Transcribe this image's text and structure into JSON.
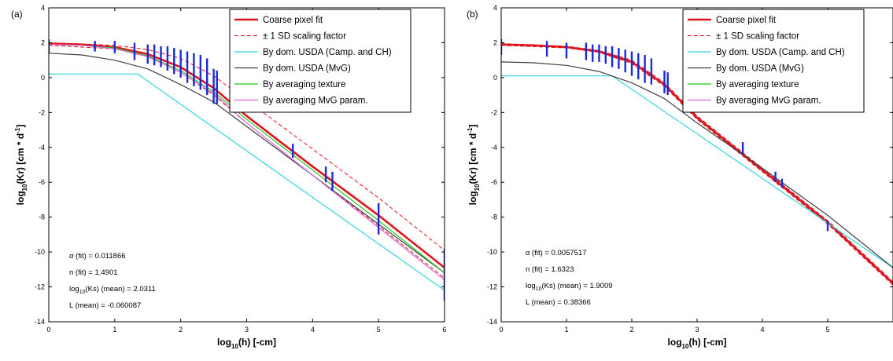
{
  "chart_data": [
    {
      "type": "line",
      "panel_label": "(a)",
      "xlabel_main": "log",
      "xlabel_sub": "10",
      "xlabel_rest": "(h) [-cm]",
      "ylabel_main": "log",
      "ylabel_sub": "10",
      "ylabel_rest": "(Kr) [cm * d",
      "ylabel_sup": "-1",
      "ylabel_end": "]",
      "xlim": [
        0,
        6
      ],
      "ylim": [
        -14,
        4
      ],
      "xticks": [
        0,
        1,
        2,
        3,
        4,
        5,
        6
      ],
      "yticks": [
        4,
        2,
        0,
        -2,
        -4,
        -6,
        -8,
        -10,
        -12,
        -14
      ],
      "legend": [
        {
          "label": "Coarse pixel fit",
          "color": "#e0141c",
          "dash": "",
          "width": 2.6
        },
        {
          "label": "± 1 SD scaling factor",
          "color": "#e0141c",
          "dash": "5,3",
          "width": 1
        },
        {
          "label": "By dom. USDA (Camp. and CH)",
          "color": "#33d6e0",
          "dash": "",
          "width": 1.2
        },
        {
          "label": "By dom. USDA (MvG)",
          "color": "#404040",
          "dash": "",
          "width": 1.2
        },
        {
          "label": "By averaging texture",
          "color": "#22c522",
          "dash": "",
          "width": 1.2
        },
        {
          "label": "By averaging MvG param.",
          "color": "#e060e0",
          "dash": "",
          "width": 1.2
        }
      ],
      "annotations": [
        {
          "sym": "α",
          "rest": " (fit) = 0.011866"
        },
        {
          "pre": "n (fit) = 1.4901"
        },
        {
          "pre": "log",
          "sub": "10",
          "rest": "(Ks) (mean) = 2.0311"
        },
        {
          "pre": "L (mean) = -0.060087"
        }
      ],
      "series": [
        {
          "name": "Coarse pixel fit",
          "color": "#e0141c",
          "width": 2.6,
          "dash": "",
          "x": [
            0,
            0.5,
            1.0,
            1.5,
            2.0,
            2.5,
            3.0,
            4.0,
            5.0,
            6.0
          ],
          "y": [
            1.95,
            1.9,
            1.75,
            1.35,
            0.6,
            -0.6,
            -2.2,
            -5.1,
            -7.9,
            -10.9
          ]
        },
        {
          "name": "+1 SD",
          "color": "#e0141c",
          "width": 1,
          "dash": "5,3",
          "x": [
            0,
            1.0,
            1.5,
            2.0,
            2.5,
            3.0,
            4.0,
            5.0,
            6.0
          ],
          "y": [
            2.0,
            1.85,
            1.6,
            1.1,
            0.1,
            -1.3,
            -4.1,
            -6.9,
            -9.9
          ]
        },
        {
          "name": "-1 SD",
          "color": "#e0141c",
          "width": 1,
          "dash": "5,3",
          "x": [
            0,
            1.0,
            1.5,
            2.0,
            2.5,
            3.0,
            4.0,
            5.0,
            6.0
          ],
          "y": [
            1.85,
            1.65,
            1.2,
            0.3,
            -1.0,
            -2.6,
            -5.6,
            -8.5,
            -11.5
          ]
        },
        {
          "name": "By dom. USDA (Camp. and CH)",
          "color": "#33d6e0",
          "width": 1.2,
          "dash": "",
          "x": [
            0,
            1.35,
            6.0
          ],
          "y": [
            0.2,
            0.2,
            -12.2
          ]
        },
        {
          "name": "By dom. USDA (MvG)",
          "color": "#404040",
          "width": 1.2,
          "dash": "",
          "x": [
            0,
            0.5,
            1.0,
            1.5,
            2.0,
            2.5,
            3.0,
            4.0,
            5.0,
            6.0
          ],
          "y": [
            1.4,
            1.3,
            1.0,
            0.5,
            -0.4,
            -1.4,
            -2.8,
            -5.6,
            -8.4,
            -11.2
          ]
        },
        {
          "name": "By averaging texture",
          "color": "#22c522",
          "width": 1.2,
          "dash": "",
          "x": [
            0,
            0.5,
            1.0,
            1.5,
            2.0,
            2.5,
            3.0,
            4.0,
            5.0,
            6.0
          ],
          "y": [
            1.9,
            1.85,
            1.7,
            1.25,
            0.4,
            -0.8,
            -2.4,
            -5.3,
            -8.2,
            -11.2
          ]
        },
        {
          "name": "By averaging MvG param.",
          "color": "#e060e0",
          "width": 1.2,
          "dash": "",
          "x": [
            0,
            0.5,
            1.0,
            1.5,
            2.0,
            2.5,
            3.0,
            4.0,
            5.0,
            6.0
          ],
          "y": [
            1.9,
            1.85,
            1.65,
            1.2,
            0.3,
            -0.9,
            -2.6,
            -5.6,
            -8.6,
            -11.6
          ]
        }
      ],
      "error_bars": [
        {
          "x": 0.0,
          "lo": 1.4,
          "hi": 2.2
        },
        {
          "x": 0.7,
          "lo": 1.5,
          "hi": 2.1
        },
        {
          "x": 1.0,
          "lo": 1.4,
          "hi": 2.1
        },
        {
          "x": 1.3,
          "lo": 1.0,
          "hi": 2.0
        },
        {
          "x": 1.5,
          "lo": 0.8,
          "hi": 1.9
        },
        {
          "x": 1.6,
          "lo": 0.7,
          "hi": 1.9
        },
        {
          "x": 1.7,
          "lo": 0.6,
          "hi": 1.8
        },
        {
          "x": 1.8,
          "lo": 0.4,
          "hi": 1.8
        },
        {
          "x": 1.9,
          "lo": 0.2,
          "hi": 1.7
        },
        {
          "x": 2.0,
          "lo": 0.0,
          "hi": 1.6
        },
        {
          "x": 2.1,
          "lo": -0.3,
          "hi": 1.5
        },
        {
          "x": 2.2,
          "lo": -0.5,
          "hi": 1.4
        },
        {
          "x": 2.3,
          "lo": -0.7,
          "hi": 1.3
        },
        {
          "x": 2.4,
          "lo": -1.0,
          "hi": 1.1
        },
        {
          "x": 2.5,
          "lo": -1.5,
          "hi": 0.5
        },
        {
          "x": 2.55,
          "lo": -1.5,
          "hi": 0.4
        },
        {
          "x": 3.7,
          "lo": -4.6,
          "hi": -3.8
        },
        {
          "x": 4.2,
          "lo": -6.0,
          "hi": -5.1
        },
        {
          "x": 4.3,
          "lo": -6.5,
          "hi": -5.4
        },
        {
          "x": 5.0,
          "lo": -9.0,
          "hi": -7.2
        },
        {
          "x": 6.0,
          "lo": -12.8,
          "hi": -9.8
        }
      ]
    },
    {
      "type": "line",
      "panel_label": "(b)",
      "xlabel_main": "log",
      "xlabel_sub": "10",
      "xlabel_rest": "(h) [-cm]",
      "ylabel_main": "log",
      "ylabel_sub": "10",
      "ylabel_rest": "(Kr) [cm * d",
      "ylabel_sup": "-1",
      "ylabel_end": "]",
      "xlim": [
        0,
        6
      ],
      "ylim": [
        -14,
        4
      ],
      "xticks": [
        0,
        1,
        2,
        3,
        4,
        5
      ],
      "yticks": [
        4,
        2,
        0,
        -2,
        -4,
        -6,
        -8,
        -10,
        -12,
        -14
      ],
      "legend": [
        {
          "label": "Coarse pixel fit",
          "color": "#e0141c",
          "dash": "",
          "width": 2.6
        },
        {
          "label": "± 1 SD scaling factor",
          "color": "#e0141c",
          "dash": "5,3",
          "width": 1
        },
        {
          "label": "By dom. USDA (Camp. and CH)",
          "color": "#33d6e0",
          "dash": "",
          "width": 1.2
        },
        {
          "label": "By dom. USDA (MvG)",
          "color": "#404040",
          "dash": "",
          "width": 1.2
        },
        {
          "label": "By averaging texture",
          "color": "#22c522",
          "dash": "",
          "width": 1.2
        },
        {
          "label": "By averaging MvG param.",
          "color": "#e060e0",
          "dash": "",
          "width": 1.2
        }
      ],
      "annotations": [
        {
          "sym": "α",
          "rest": " (fit) = 0.0057517"
        },
        {
          "pre": "n (fit) = 1.6323"
        },
        {
          "pre": "log",
          "sub": "10",
          "rest": "(Ks) (mean) = 1.9009"
        },
        {
          "pre": "L (mean) = 0.38366"
        }
      ],
      "series": [
        {
          "name": "Coarse pixel fit",
          "color": "#e0141c",
          "width": 2.6,
          "dash": "",
          "x": [
            0,
            0.5,
            1.0,
            1.5,
            2.0,
            2.5,
            3.0,
            4.0,
            5.0,
            6.0
          ],
          "y": [
            1.9,
            1.85,
            1.75,
            1.5,
            0.9,
            -0.4,
            -2.3,
            -5.3,
            -8.3,
            -11.8
          ]
        },
        {
          "name": "+1 SD",
          "color": "#e0141c",
          "width": 1,
          "dash": "5,3",
          "x": [
            0,
            1.0,
            1.5,
            2.0,
            2.5,
            3.0,
            4.0,
            5.0,
            6.0
          ],
          "y": [
            1.95,
            1.8,
            1.55,
            1.0,
            -0.3,
            -2.2,
            -5.2,
            -8.2,
            -11.7
          ]
        },
        {
          "name": "-1 SD",
          "color": "#e0141c",
          "width": 1,
          "dash": "5,3",
          "x": [
            0,
            1.0,
            1.5,
            2.0,
            2.5,
            3.0,
            4.0,
            5.0,
            6.0
          ],
          "y": [
            1.85,
            1.7,
            1.45,
            0.8,
            -0.5,
            -2.4,
            -5.4,
            -8.4,
            -11.9
          ]
        },
        {
          "name": "By dom. USDA (Camp. and CH)",
          "color": "#33d6e0",
          "width": 1.2,
          "dash": "",
          "x": [
            0,
            1.7,
            6.0
          ],
          "y": [
            0.1,
            0.1,
            -10.9
          ]
        },
        {
          "name": "By dom. USDA (MvG)",
          "color": "#404040",
          "width": 1.2,
          "dash": "",
          "x": [
            0,
            0.5,
            1.0,
            1.5,
            2.0,
            2.5,
            3.0,
            4.0,
            5.0,
            6.0
          ],
          "y": [
            0.9,
            0.85,
            0.7,
            0.35,
            -0.3,
            -1.2,
            -2.6,
            -5.2,
            -7.9,
            -10.9
          ]
        }
      ],
      "error_bars": [
        {
          "x": 0.0,
          "lo": 1.3,
          "hi": 2.2
        },
        {
          "x": 0.7,
          "lo": 1.2,
          "hi": 2.1
        },
        {
          "x": 1.0,
          "lo": 1.1,
          "hi": 2.0
        },
        {
          "x": 1.3,
          "lo": 1.0,
          "hi": 2.0
        },
        {
          "x": 1.4,
          "lo": 0.9,
          "hi": 1.9
        },
        {
          "x": 1.5,
          "lo": 0.9,
          "hi": 1.9
        },
        {
          "x": 1.6,
          "lo": 0.8,
          "hi": 1.8
        },
        {
          "x": 1.7,
          "lo": 0.6,
          "hi": 1.8
        },
        {
          "x": 1.8,
          "lo": 0.5,
          "hi": 1.7
        },
        {
          "x": 1.9,
          "lo": 0.3,
          "hi": 1.6
        },
        {
          "x": 2.0,
          "lo": 0.1,
          "hi": 1.5
        },
        {
          "x": 2.1,
          "lo": -0.1,
          "hi": 1.4
        },
        {
          "x": 2.2,
          "lo": -0.3,
          "hi": 1.3
        },
        {
          "x": 2.3,
          "lo": -0.4,
          "hi": 1.1
        },
        {
          "x": 2.5,
          "lo": -0.9,
          "hi": 0.4
        },
        {
          "x": 2.55,
          "lo": -1.0,
          "hi": 0.3
        },
        {
          "x": 3.7,
          "lo": -4.4,
          "hi": -3.7
        },
        {
          "x": 4.2,
          "lo": -6.0,
          "hi": -5.4
        },
        {
          "x": 4.3,
          "lo": -6.3,
          "hi": -5.8
        },
        {
          "x": 5.0,
          "lo": -8.8,
          "hi": -8.2
        }
      ]
    }
  ]
}
